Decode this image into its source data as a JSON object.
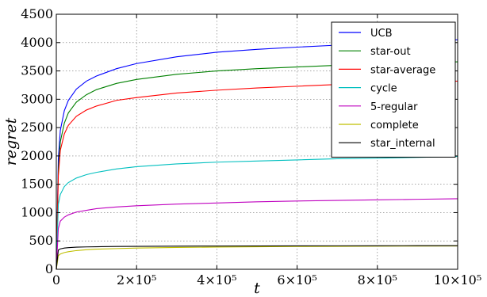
{
  "chart_data": {
    "type": "line",
    "title": "",
    "xlabel": "t",
    "ylabel": "regret",
    "xlim": [
      0,
      1000000
    ],
    "ylim": [
      0,
      4500
    ],
    "grid": true,
    "legend_position": "top-right",
    "x_ticks": [
      {
        "value": 0,
        "label": "0"
      },
      {
        "value": 200000,
        "label": "2×10⁵"
      },
      {
        "value": 400000,
        "label": "4×10⁵"
      },
      {
        "value": 600000,
        "label": "6×10⁵"
      },
      {
        "value": 800000,
        "label": "8×10⁵"
      },
      {
        "value": 1000000,
        "label": "10×10⁵"
      }
    ],
    "y_ticks": [
      {
        "value": 0,
        "label": "0"
      },
      {
        "value": 500,
        "label": "500"
      },
      {
        "value": 1000,
        "label": "1000"
      },
      {
        "value": 1500,
        "label": "1500"
      },
      {
        "value": 2000,
        "label": "2000"
      },
      {
        "value": 2500,
        "label": "2500"
      },
      {
        "value": 3000,
        "label": "3000"
      },
      {
        "value": 3500,
        "label": "3500"
      },
      {
        "value": 4000,
        "label": "4000"
      },
      {
        "value": 4500,
        "label": "4500"
      }
    ],
    "x": [
      0,
      5000,
      10000,
      20000,
      30000,
      50000,
      75000,
      100000,
      150000,
      200000,
      300000,
      400000,
      500000,
      600000,
      700000,
      800000,
      900000,
      1000000
    ],
    "series": [
      {
        "name": "UCB",
        "color": "#0000ff",
        "values": [
          0,
          1950,
          2450,
          2800,
          2980,
          3180,
          3320,
          3410,
          3540,
          3630,
          3750,
          3830,
          3880,
          3920,
          3955,
          3985,
          4020,
          4050
        ]
      },
      {
        "name": "star-out",
        "color": "#008000",
        "values": [
          0,
          1750,
          2250,
          2580,
          2760,
          2950,
          3080,
          3170,
          3280,
          3350,
          3440,
          3500,
          3540,
          3570,
          3600,
          3620,
          3640,
          3660
        ]
      },
      {
        "name": "star-average",
        "color": "#ff0000",
        "values": [
          0,
          1650,
          2100,
          2390,
          2540,
          2700,
          2810,
          2880,
          2980,
          3030,
          3110,
          3160,
          3200,
          3230,
          3260,
          3280,
          3300,
          3320
        ]
      },
      {
        "name": "cycle",
        "color": "#00bfbf",
        "values": [
          0,
          1150,
          1320,
          1460,
          1530,
          1610,
          1670,
          1710,
          1770,
          1810,
          1860,
          1890,
          1910,
          1930,
          1950,
          1960,
          1975,
          1990
        ]
      },
      {
        "name": "5-regular",
        "color": "#bf00bf",
        "values": [
          0,
          720,
          850,
          920,
          960,
          1010,
          1040,
          1070,
          1100,
          1120,
          1150,
          1170,
          1190,
          1205,
          1215,
          1225,
          1235,
          1245
        ]
      },
      {
        "name": "complete",
        "color": "#bfbf00",
        "values": [
          0,
          240,
          270,
          295,
          310,
          330,
          345,
          355,
          365,
          375,
          385,
          392,
          398,
          402,
          405,
          408,
          410,
          412
        ]
      },
      {
        "name": "star_internal",
        "color": "#000000",
        "values": [
          0,
          340,
          360,
          375,
          382,
          390,
          395,
          398,
          402,
          405,
          408,
          410,
          412,
          413,
          414,
          415,
          416,
          417
        ]
      }
    ]
  }
}
